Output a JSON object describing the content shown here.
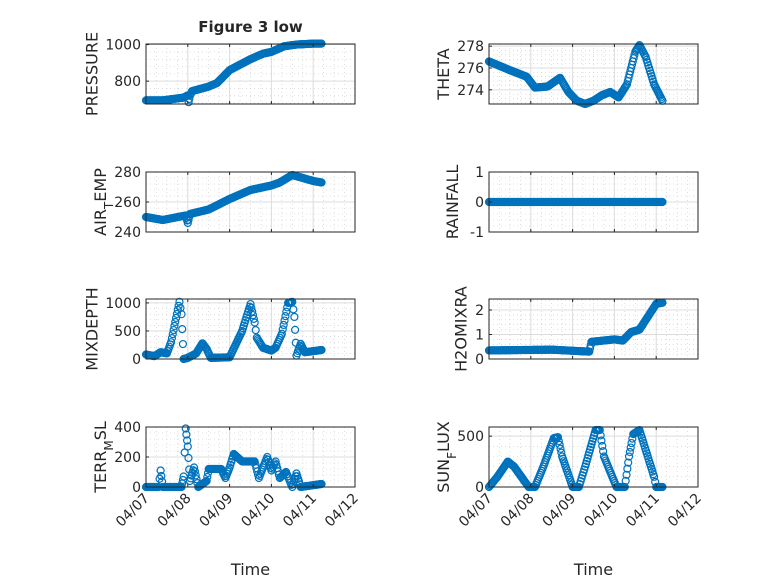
{
  "colors": {
    "marker": "#0072BD",
    "axis": "#262626",
    "grid": "#dcdcdc"
  },
  "chart_data": [
    {
      "type": "scatter",
      "id": "pressure",
      "title": "Figure 3 low",
      "ylabel": [
        "PRESSURE"
      ],
      "xlabel": "",
      "xlim": [
        0,
        5
      ],
      "ylim": [
        675,
        1003
      ],
      "yticks": [
        800,
        1000
      ],
      "xtick_labels": [],
      "x_unit": "days since 04/07",
      "points": [
        [
          0,
          695
        ],
        [
          0.4,
          695
        ],
        [
          0.9,
          710
        ],
        [
          1,
          722
        ],
        [
          1.02,
          685
        ],
        [
          1.05,
          720
        ],
        [
          1.1,
          745
        ],
        [
          1.5,
          770
        ],
        [
          1.7,
          790
        ],
        [
          2,
          860
        ],
        [
          2.5,
          920
        ],
        [
          2.8,
          950
        ],
        [
          3,
          960
        ],
        [
          3.3,
          990
        ],
        [
          3.6,
          1000
        ],
        [
          4,
          1005
        ],
        [
          4.2,
          1005
        ]
      ]
    },
    {
      "type": "scatter",
      "id": "theta",
      "ylabel": [
        "THETA"
      ],
      "xlabel": "",
      "xlim": [
        0,
        5
      ],
      "ylim": [
        272.7,
        278.2
      ],
      "yticks": [
        274,
        276,
        278
      ],
      "xtick_labels": [],
      "points": [
        [
          0,
          276.6
        ],
        [
          0.5,
          275.8
        ],
        [
          0.9,
          275.2
        ],
        [
          1.1,
          274.2
        ],
        [
          1.4,
          274.3
        ],
        [
          1.7,
          275.1
        ],
        [
          1.9,
          273.8
        ],
        [
          2.1,
          273
        ],
        [
          2.3,
          272.7
        ],
        [
          2.5,
          273
        ],
        [
          2.7,
          273.5
        ],
        [
          2.9,
          273.8
        ],
        [
          3.1,
          273.3
        ],
        [
          3.3,
          274.5
        ],
        [
          3.5,
          277.5
        ],
        [
          3.6,
          278.1
        ],
        [
          3.75,
          277
        ],
        [
          3.95,
          274.5
        ],
        [
          4.15,
          273
        ]
      ]
    },
    {
      "type": "scatter",
      "id": "air_temp",
      "ylabel": [
        "AIR",
        "T",
        "EMP"
      ],
      "xlabel": "",
      "xlim": [
        0,
        5
      ],
      "ylim": [
        240,
        280
      ],
      "yticks": [
        240,
        260,
        280
      ],
      "xtick_labels": [],
      "points": [
        [
          0,
          250
        ],
        [
          0.4,
          248
        ],
        [
          0.95,
          251
        ],
        [
          1,
          246
        ],
        [
          1.05,
          252
        ],
        [
          1.5,
          255
        ],
        [
          2,
          262
        ],
        [
          2.5,
          268
        ],
        [
          3,
          271
        ],
        [
          3.2,
          273
        ],
        [
          3.5,
          278
        ],
        [
          4,
          274
        ],
        [
          4.2,
          273
        ]
      ]
    },
    {
      "type": "scatter",
      "id": "rainfall",
      "ylabel": [
        "RAINFALL"
      ],
      "xlabel": "",
      "xlim": [
        0,
        5
      ],
      "ylim": [
        -1,
        1
      ],
      "yticks": [
        -1,
        0,
        1
      ],
      "xtick_labels": [],
      "points": [
        [
          0,
          0
        ],
        [
          4.15,
          0
        ]
      ]
    },
    {
      "type": "scatter",
      "id": "mixdepth",
      "ylabel": [
        "MIXDEPTH"
      ],
      "xlabel": "",
      "xlim": [
        0,
        5
      ],
      "ylim": [
        0,
        1070
      ],
      "yticks": [
        0,
        500,
        1000
      ],
      "xtick_labels": [],
      "points": [
        [
          0,
          80
        ],
        [
          0.2,
          50
        ],
        [
          0.35,
          120
        ],
        [
          0.5,
          100
        ],
        [
          0.6,
          300
        ],
        [
          0.8,
          1020
        ],
        [
          0.85,
          800
        ],
        [
          0.9,
          0
        ],
        [
          1,
          20
        ],
        [
          1.2,
          100
        ],
        [
          1.35,
          280
        ],
        [
          1.45,
          180
        ],
        [
          1.55,
          20
        ],
        [
          2,
          30
        ],
        [
          2.3,
          500
        ],
        [
          2.5,
          980
        ],
        [
          2.6,
          650
        ],
        [
          2.65,
          380
        ],
        [
          2.8,
          200
        ],
        [
          3,
          150
        ],
        [
          3.1,
          200
        ],
        [
          3.25,
          450
        ],
        [
          3.4,
          1000
        ],
        [
          3.5,
          1020
        ],
        [
          3.55,
          750
        ],
        [
          3.6,
          60
        ],
        [
          3.7,
          270
        ],
        [
          3.8,
          120
        ],
        [
          4.2,
          160
        ]
      ]
    },
    {
      "type": "scatter",
      "id": "h2omixra",
      "ylabel": [
        "H2OMIXRA"
      ],
      "xlabel": "",
      "xlim": [
        0,
        5
      ],
      "ylim": [
        0,
        2.45
      ],
      "yticks": [
        0,
        1,
        2
      ],
      "xtick_labels": [],
      "points": [
        [
          0,
          0.35
        ],
        [
          1.5,
          0.38
        ],
        [
          2.4,
          0.3
        ],
        [
          2.45,
          0.7
        ],
        [
          3,
          0.8
        ],
        [
          3.2,
          0.75
        ],
        [
          3.4,
          1.1
        ],
        [
          3.6,
          1.2
        ],
        [
          4,
          2.25
        ],
        [
          4.15,
          2.3
        ]
      ]
    },
    {
      "type": "scatter",
      "id": "terr_msl",
      "ylabel": [
        "TERR",
        "M",
        "SL"
      ],
      "xlabel": "Time",
      "xlim": [
        0,
        5
      ],
      "ylim": [
        0,
        400
      ],
      "yticks": [
        0,
        200,
        400
      ],
      "xtick_labels": [
        "04/07",
        "04/08",
        "04/09",
        "04/10",
        "04/11",
        "04/12"
      ],
      "points": [
        [
          0,
          0
        ],
        [
          0.3,
          0
        ],
        [
          0.35,
          110
        ],
        [
          0.4,
          0
        ],
        [
          0.85,
          0
        ],
        [
          0.9,
          70
        ],
        [
          0.95,
          390
        ],
        [
          1,
          270
        ],
        [
          1.05,
          40
        ],
        [
          1.15,
          130
        ],
        [
          1.25,
          0
        ],
        [
          1.45,
          40
        ],
        [
          1.5,
          120
        ],
        [
          1.8,
          120
        ],
        [
          1.9,
          60
        ],
        [
          2,
          130
        ],
        [
          2.1,
          220
        ],
        [
          2.3,
          170
        ],
        [
          2.6,
          170
        ],
        [
          2.7,
          60
        ],
        [
          2.9,
          200
        ],
        [
          3,
          110
        ],
        [
          3.1,
          170
        ],
        [
          3.2,
          60
        ],
        [
          3.35,
          100
        ],
        [
          3.5,
          0
        ],
        [
          3.6,
          90
        ],
        [
          3.7,
          0
        ],
        [
          4.2,
          20
        ]
      ]
    },
    {
      "type": "scatter",
      "id": "sun_flux",
      "ylabel": [
        "SUN",
        "F",
        "LUX"
      ],
      "xlabel": "Time",
      "xlim": [
        0,
        5
      ],
      "ylim": [
        0,
        590
      ],
      "yticks": [
        0,
        500
      ],
      "xtick_labels": [
        "04/07",
        "04/08",
        "04/09",
        "04/10",
        "04/11",
        "04/12"
      ],
      "points": [
        [
          0,
          0
        ],
        [
          0.2,
          100
        ],
        [
          0.45,
          250
        ],
        [
          0.6,
          200
        ],
        [
          0.95,
          0
        ],
        [
          1.1,
          0
        ],
        [
          1.3,
          200
        ],
        [
          1.55,
          480
        ],
        [
          1.65,
          490
        ],
        [
          1.75,
          300
        ],
        [
          2.0,
          0
        ],
        [
          2.15,
          0
        ],
        [
          2.3,
          200
        ],
        [
          2.55,
          560
        ],
        [
          2.65,
          560
        ],
        [
          2.75,
          300
        ],
        [
          3.05,
          0
        ],
        [
          3.25,
          0
        ],
        [
          3.35,
          300
        ],
        [
          3.45,
          520
        ],
        [
          3.6,
          560
        ],
        [
          3.95,
          100
        ],
        [
          4.0,
          0
        ],
        [
          4.15,
          0
        ]
      ]
    }
  ]
}
